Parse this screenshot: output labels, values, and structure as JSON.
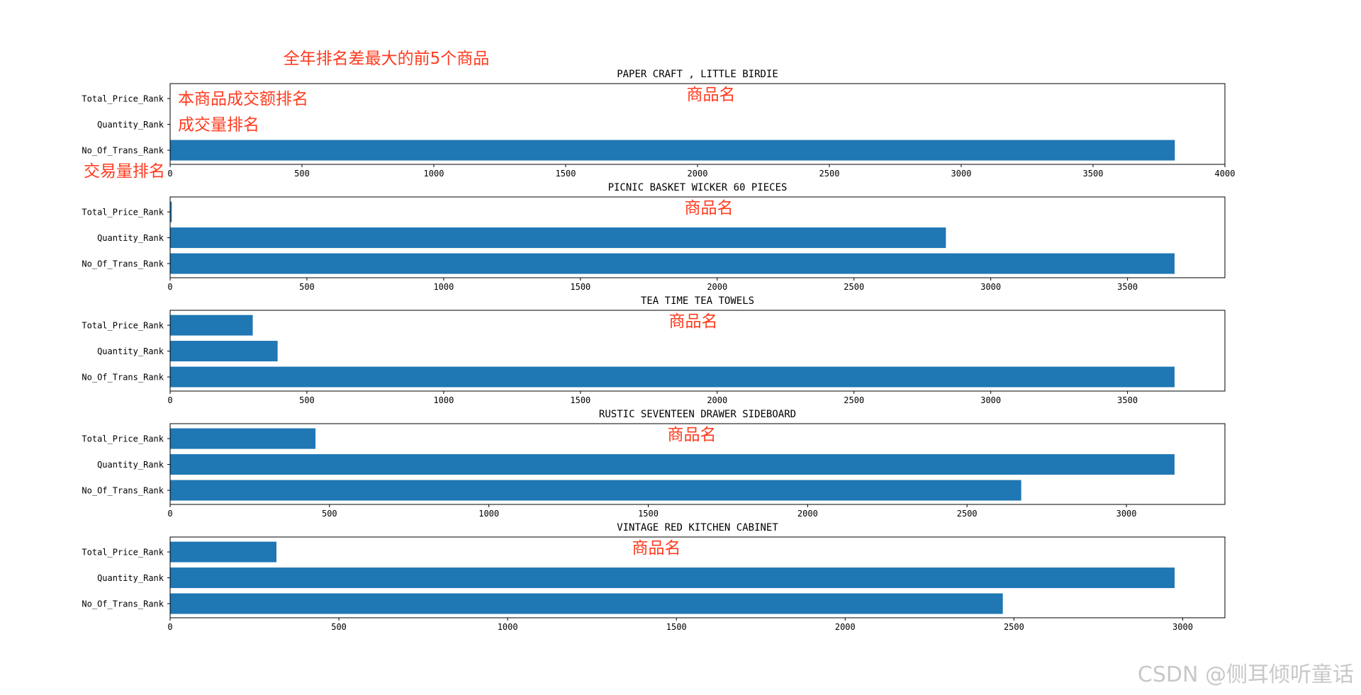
{
  "figure_title": "全年排名差最大的前5个商品",
  "watermark": "CSDN @侧耳倾听童话",
  "colors": {
    "bar": "#1f77b4",
    "annotation": "#ff3b1f",
    "axis": "#000000",
    "watermark": "#c8c8c8"
  },
  "chart_data": [
    {
      "type": "bar",
      "orientation": "horizontal",
      "title": "PAPER CRAFT , LITTLE BIRDIE",
      "annotation": "商品名",
      "categories": [
        "Total_Price_Rank",
        "Quantity_Rank",
        "No_Of_Trans_Rank"
      ],
      "values": [
        0,
        0,
        3810
      ],
      "xlim": [
        0,
        4000
      ],
      "xticks": [
        0,
        500,
        1000,
        1500,
        2000,
        2500,
        3000,
        3500,
        4000
      ],
      "category_annotations": [
        "本商品成交额排名",
        "成交量排名",
        "交易量排名"
      ]
    },
    {
      "type": "bar",
      "orientation": "horizontal",
      "title": "PICNIC BASKET WICKER 60 PIECES",
      "annotation": "商品名",
      "categories": [
        "Total_Price_Rank",
        "Quantity_Rank",
        "No_Of_Trans_Rank"
      ],
      "values": [
        6,
        2836,
        3672
      ],
      "xlim": [
        0,
        3856
      ],
      "xticks": [
        0,
        500,
        1000,
        1500,
        2000,
        2500,
        3000,
        3500
      ]
    },
    {
      "type": "bar",
      "orientation": "horizontal",
      "title": "TEA TIME TEA TOWELS",
      "annotation": "商品名",
      "categories": [
        "Total_Price_Rank",
        "Quantity_Rank",
        "No_Of_Trans_Rank"
      ],
      "values": [
        302,
        393,
        3672
      ],
      "xlim": [
        0,
        3856
      ],
      "xticks": [
        0,
        500,
        1000,
        1500,
        2000,
        2500,
        3000,
        3500
      ]
    },
    {
      "type": "bar",
      "orientation": "horizontal",
      "title": "RUSTIC  SEVENTEEN DRAWER SIDEBOARD",
      "annotation": "商品名",
      "categories": [
        "Total_Price_Rank",
        "Quantity_Rank",
        "No_Of_Trans_Rank"
      ],
      "values": [
        456,
        3151,
        2670
      ],
      "xlim": [
        0,
        3309
      ],
      "xticks": [
        0,
        500,
        1000,
        1500,
        2000,
        2500,
        3000
      ]
    },
    {
      "type": "bar",
      "orientation": "horizontal",
      "title": "VINTAGE RED KITCHEN CABINET",
      "annotation": "商品名",
      "categories": [
        "Total_Price_Rank",
        "Quantity_Rank",
        "No_Of_Trans_Rank"
      ],
      "values": [
        315,
        2976,
        2467
      ],
      "xlim": [
        0,
        3125
      ],
      "xticks": [
        0,
        500,
        1000,
        1500,
        2000,
        2500,
        3000
      ]
    }
  ]
}
